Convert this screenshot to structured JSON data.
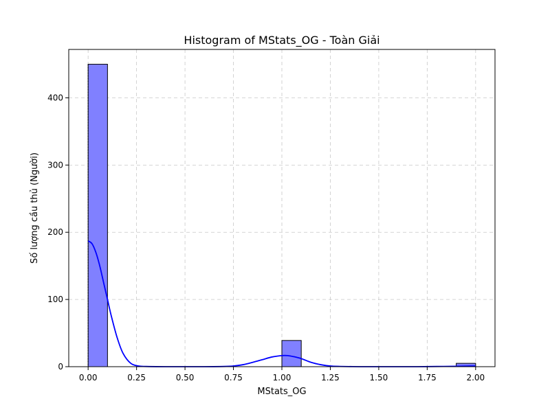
{
  "chart_data": {
    "type": "bar",
    "title": "Histogram of MStats_OG - Toàn Giải",
    "xlabel": "MStats_OG",
    "ylabel": "Số lượng cầu thủ (Người)",
    "xlim": [
      -0.1,
      2.1
    ],
    "ylim": [
      0,
      472
    ],
    "x_ticks": [
      0.0,
      0.25,
      0.5,
      0.75,
      1.0,
      1.25,
      1.5,
      1.75,
      2.0
    ],
    "x_tick_labels": [
      "0.00",
      "0.25",
      "0.50",
      "0.75",
      "1.00",
      "1.25",
      "1.50",
      "1.75",
      "2.00"
    ],
    "y_ticks": [
      0,
      100,
      200,
      300,
      400
    ],
    "y_tick_labels": [
      "0",
      "100",
      "200",
      "300",
      "400"
    ],
    "bins": [
      {
        "x0": 0.0,
        "x1": 0.1,
        "count": 450
      },
      {
        "x0": 1.0,
        "x1": 1.1,
        "count": 39
      },
      {
        "x0": 1.9,
        "x1": 2.0,
        "count": 5
      }
    ],
    "kde": {
      "x": [
        0.0,
        0.02,
        0.04,
        0.06,
        0.08,
        0.1,
        0.12,
        0.15,
        0.18,
        0.22,
        0.26,
        0.3,
        0.4,
        0.5,
        0.6,
        0.7,
        0.75,
        0.8,
        0.85,
        0.9,
        0.95,
        1.0,
        1.03,
        1.06,
        1.1,
        1.15,
        1.2,
        1.25,
        1.3,
        1.4,
        1.5,
        1.6,
        1.7,
        1.8,
        1.9,
        1.95,
        2.0
      ],
      "y": [
        187,
        183,
        170,
        150,
        125,
        100,
        75,
        43,
        20,
        5,
        1,
        0.3,
        0,
        0,
        0,
        0.3,
        1,
        3,
        6.5,
        10.5,
        14.5,
        16.5,
        16.5,
        15,
        12,
        6.5,
        3,
        1,
        0.4,
        0,
        0,
        0,
        0,
        0.3,
        0.6,
        0.9,
        1
      ]
    },
    "bar_color": "#8080ff",
    "bar_edge_color": "#000000",
    "kde_color": "#0000ff",
    "grid": true
  }
}
